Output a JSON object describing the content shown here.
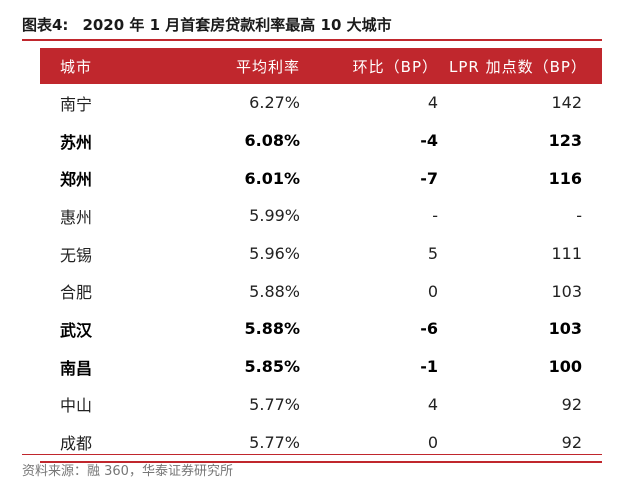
{
  "title": {
    "label": "图表4:",
    "text": "2020 年 1 月首套房贷款利率最高 10 大城市"
  },
  "table": {
    "headers": [
      "城市",
      "平均利率",
      "环比（BP）",
      "LPR 加点数（BP）"
    ],
    "rows": [
      {
        "city": "南宁",
        "rate": "6.27%",
        "mom": "4",
        "lpr": "142",
        "bold": false
      },
      {
        "city": "苏州",
        "rate": "6.08%",
        "mom": "-4",
        "lpr": "123",
        "bold": true
      },
      {
        "city": "郑州",
        "rate": "6.01%",
        "mom": "-7",
        "lpr": "116",
        "bold": true
      },
      {
        "city": "惠州",
        "rate": "5.99%",
        "mom": "-",
        "lpr": "-",
        "bold": false
      },
      {
        "city": "无锡",
        "rate": "5.96%",
        "mom": "5",
        "lpr": "111",
        "bold": false
      },
      {
        "city": "合肥",
        "rate": "5.88%",
        "mom": "0",
        "lpr": "103",
        "bold": false
      },
      {
        "city": "武汉",
        "rate": "5.88%",
        "mom": "-6",
        "lpr": "103",
        "bold": true
      },
      {
        "city": "南昌",
        "rate": "5.85%",
        "mom": "-1",
        "lpr": "100",
        "bold": true
      },
      {
        "city": "中山",
        "rate": "5.77%",
        "mom": "4",
        "lpr": "92",
        "bold": false
      },
      {
        "city": "成都",
        "rate": "5.77%",
        "mom": "0",
        "lpr": "92",
        "bold": false
      }
    ]
  },
  "source": "资料来源：融 360，华泰证券研究所"
}
